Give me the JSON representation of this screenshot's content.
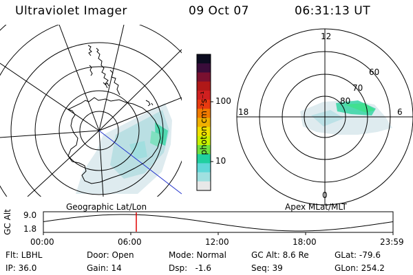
{
  "header": {
    "title": "Ultraviolet Imager",
    "date": "09 Oct 07",
    "time": "06:31:13 UT"
  },
  "colorbar": {
    "unit_label": "photon cm⁻²s⁻¹",
    "ticks": [
      "100",
      "10"
    ],
    "colors": [
      "#0c0c20",
      "#3a0c3a",
      "#7a1030",
      "#b01818",
      "#d02020",
      "#e83a10",
      "#f07a00",
      "#f0b000",
      "#f0e000",
      "#c8f000",
      "#70e040",
      "#20d0a0",
      "#60d8d8",
      "#a0e0e0",
      "#e8e8e8"
    ]
  },
  "left_map": {
    "label": "Geographic Lat/Lon"
  },
  "right_map": {
    "label": "Apex MLat/MLT",
    "mlt_labels": {
      "top": "12",
      "left": "18",
      "right": "6",
      "bottom": "0"
    },
    "lat_labels": [
      "60",
      "70",
      "80"
    ]
  },
  "timeline": {
    "ylabel": "GC Alt",
    "y_ticks": [
      "9.0",
      "1.8"
    ],
    "x_ticks": [
      "00:00",
      "06:00",
      "12:00",
      "18:00",
      "23:59"
    ],
    "marker_color": "#e00000"
  },
  "footer": {
    "filter": "Flt: LBHL",
    "door": "Door: Open",
    "mode": "Mode: Normal",
    "gc_alt": "GC Alt: 8.6 Re",
    "glat": "GLat: -79.6",
    "ip": "IP: 36.0",
    "gain": "Gain: 14",
    "dsp": "Dsp:   -1.6",
    "seq": "Seq: 39",
    "glon": "GLon: 254.2"
  }
}
